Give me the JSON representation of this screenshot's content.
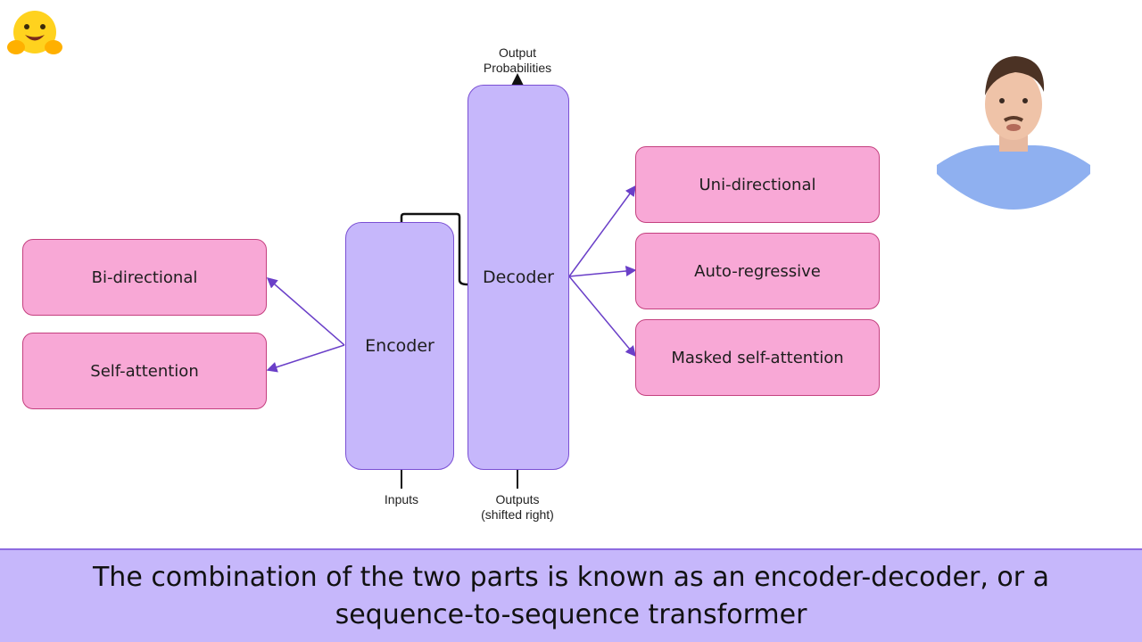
{
  "diagram": {
    "top_label": {
      "line1": "Output",
      "line2": "Probabilities"
    },
    "encoder": {
      "label": "Encoder"
    },
    "decoder": {
      "label": "Decoder"
    },
    "encoder_props": [
      "Bi-directional",
      "Self-attention"
    ],
    "decoder_props": [
      "Uni-directional",
      "Auto-regressive",
      "Masked self-attention"
    ],
    "inputs_label": "Inputs",
    "outputs_label": {
      "line1": "Outputs",
      "line2": "(shifted right)"
    }
  },
  "caption": {
    "text": "The combination of the two parts is known as an encoder-decoder, or a sequence-to-sequence transformer"
  },
  "colors": {
    "pink_fill": "#f8a8d6",
    "purple_fill": "#c6b7fb",
    "arrow": "#6a3fc8"
  }
}
